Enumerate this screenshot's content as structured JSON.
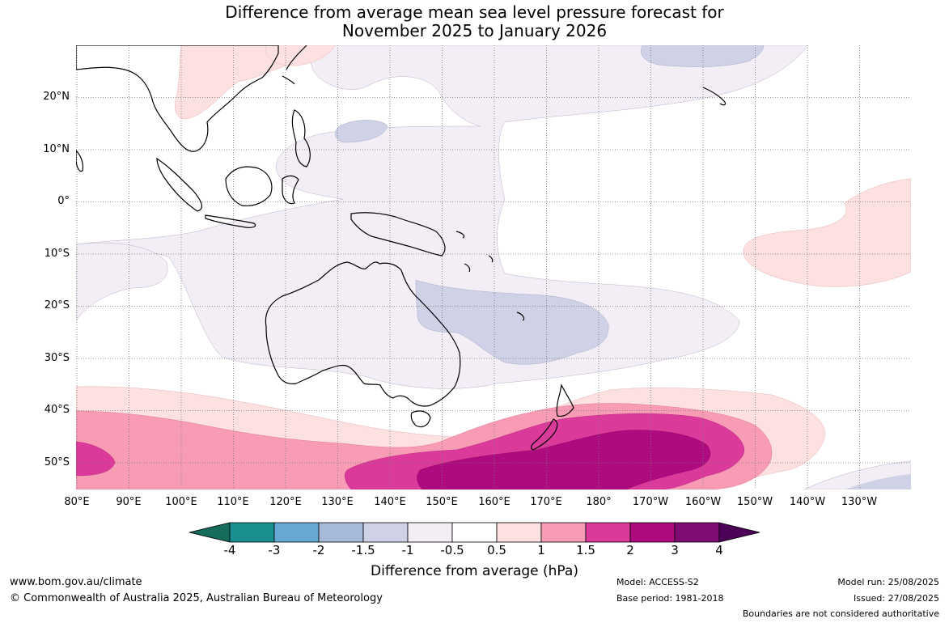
{
  "title": {
    "line1": "Difference from average mean sea level pressure forecast for",
    "line2": "November 2025 to January 2026"
  },
  "map": {
    "lon_ticks": [
      "80°E",
      "90°E",
      "100°E",
      "110°E",
      "120°E",
      "130°E",
      "140°E",
      "150°E",
      "160°E",
      "170°E",
      "180°",
      "170°W",
      "160°W",
      "150°W",
      "140°W",
      "130°W"
    ],
    "lat_ticks": [
      "20°N",
      "10°N",
      "0°",
      "10°S",
      "20°S",
      "30°S",
      "40°S",
      "50°S"
    ]
  },
  "colorbar": {
    "label": "Difference from average (hPa)",
    "ticks": [
      "-4",
      "-3",
      "-2",
      "-1.5",
      "-1",
      "-0.5",
      "0.5",
      "1",
      "1.5",
      "2",
      "3",
      "4"
    ],
    "colors": [
      "#156c5c",
      "#19908f",
      "#66a9d2",
      "#a6b9d8",
      "#cfd1e6",
      "#f3eef6",
      "#ffffff",
      "#fde0e0",
      "#f89cb5",
      "#dc3a9a",
      "#ae0b7e",
      "#7e0c72",
      "#4c0357"
    ]
  },
  "colors": {
    "land": "#000000",
    "grid": "#777777",
    "neg_05": "#f3eef6",
    "neg_1": "#cfd1e6",
    "pos_05": "#fde0e0",
    "pos_1": "#f89cb5",
    "pos_15": "#dc3a9a",
    "pos_2": "#ae0b7e"
  },
  "footer": {
    "website": "www.bom.gov.au/climate",
    "copyright": "© Commonwealth of Australia 2025, Australian Bureau of Meteorology",
    "model": "Model: ACCESS-S2",
    "base_period": "Base period: 1981-2018",
    "model_run": "Model run: 25/08/2025",
    "issued": "Issued: 27/08/2025",
    "disclaimer": "Boundaries are not considered authoritative"
  }
}
